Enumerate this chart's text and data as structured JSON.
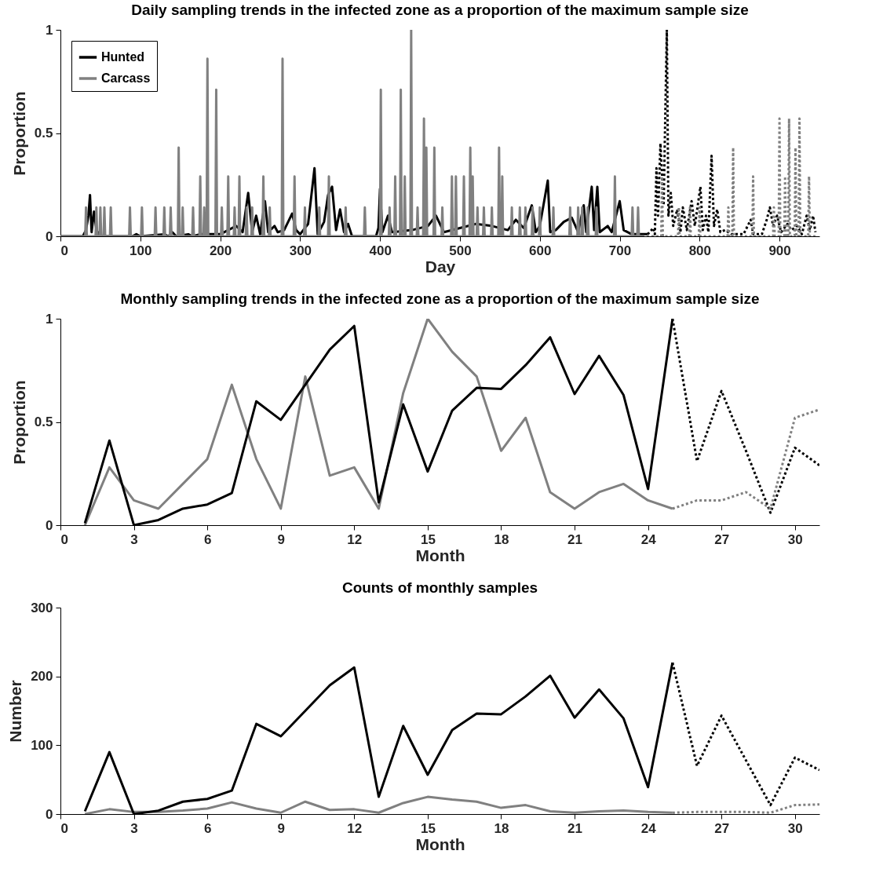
{
  "chart_data": [
    {
      "type": "line",
      "title": "Daily sampling trends in the infected zone as a proportion of the maximum sample size",
      "xlabel": "Day",
      "ylabel": "Proportion",
      "xlim": [
        0,
        950
      ],
      "xticks": [
        0,
        100,
        200,
        300,
        400,
        500,
        600,
        700,
        800,
        900
      ],
      "ylim": [
        0,
        1
      ],
      "yticks": [
        0,
        0.5,
        1
      ],
      "legend": "top left",
      "series": [
        {
          "name": "Hunted",
          "color": "#000000",
          "line_style": "solid",
          "x": [
            0,
            28,
            32,
            35,
            37,
            39,
            42,
            45,
            50,
            90,
            95,
            100,
            130,
            135,
            140,
            145,
            160,
            165,
            175,
            200,
            210,
            220,
            228,
            235,
            240,
            245,
            250,
            256,
            260,
            268,
            272,
            280,
            290,
            295,
            300,
            310,
            318,
            322,
            330,
            335,
            340,
            345,
            350,
            355,
            360,
            365,
            395,
            398,
            400,
            403,
            410,
            415,
            440,
            460,
            470,
            480,
            500,
            520,
            540,
            560,
            570,
            580,
            590,
            595,
            600,
            610,
            613,
            620,
            630,
            640,
            648,
            655,
            658,
            665,
            668,
            672,
            675,
            685,
            690,
            700,
            705,
            715,
            725,
            735
          ],
          "values": [
            0,
            0,
            0.03,
            0.1,
            0.2,
            0.02,
            0.12,
            0.03,
            0,
            0,
            0.01,
            0,
            0.01,
            0,
            0.02,
            0,
            0.01,
            0,
            0.01,
            0.01,
            0.03,
            0.05,
            0.02,
            0.21,
            0.02,
            0.1,
            0.01,
            0.17,
            0.02,
            0.05,
            0.02,
            0.03,
            0.11,
            0.03,
            0.01,
            0.06,
            0.33,
            0.01,
            0.07,
            0.2,
            0.24,
            0.03,
            0.13,
            0.02,
            0.06,
            0,
            0,
            0.04,
            0.23,
            0.02,
            0.1,
            0.02,
            0.03,
            0.05,
            0.1,
            0.02,
            0.04,
            0.06,
            0.05,
            0.03,
            0.08,
            0.04,
            0.15,
            0.02,
            0.05,
            0.27,
            0.02,
            0.03,
            0.07,
            0.09,
            0.02,
            0.15,
            0.02,
            0.24,
            0.03,
            0.24,
            0.02,
            0.05,
            0.02,
            0.17,
            0.03,
            0.01,
            0.01,
            0.01
          ]
        },
        {
          "name": "Carcass",
          "color": "#808080",
          "line_style": "solid",
          "x": [
            0,
            31,
            32,
            33,
            44,
            45,
            46,
            49,
            50,
            51,
            54,
            55,
            56,
            62,
            63,
            64,
            86,
            87,
            88,
            101,
            102,
            103,
            118,
            119,
            120,
            129,
            130,
            131,
            137,
            138,
            139,
            147,
            148,
            149,
            152,
            153,
            154,
            165,
            166,
            167,
            174,
            175,
            176,
            179,
            180,
            181,
            183,
            184,
            185,
            194,
            195,
            196,
            201,
            202,
            203,
            209,
            210,
            211,
            217,
            218,
            219,
            223,
            224,
            225,
            232,
            233,
            234,
            239,
            240,
            241,
            253,
            254,
            255,
            261,
            262,
            263,
            277,
            278,
            279,
            292,
            293,
            294,
            305,
            306,
            307,
            323,
            324,
            325,
            335,
            336,
            337,
            356,
            357,
            358,
            380,
            381,
            382,
            400,
            401,
            402,
            411,
            412,
            413,
            418,
            419,
            420,
            425,
            426,
            427,
            430,
            431,
            432,
            438,
            439,
            440,
            446,
            447,
            448,
            454,
            455,
            456,
            457,
            458,
            459,
            467,
            468,
            469,
            477,
            478,
            479,
            489,
            490,
            491,
            494,
            495,
            496,
            504,
            505,
            506,
            512,
            513,
            514,
            515,
            516,
            517,
            521,
            522,
            523,
            529,
            530,
            531,
            539,
            540,
            541,
            548,
            549,
            550,
            552,
            553,
            554,
            564,
            565,
            566,
            574,
            575,
            576,
            581,
            582,
            583,
            590,
            591,
            592,
            599,
            600,
            601,
            616,
            617,
            618,
            637,
            638,
            639,
            647,
            648,
            649,
            652,
            653,
            654,
            659,
            660,
            661,
            670,
            671,
            672,
            693,
            694,
            695,
            715,
            716,
            717,
            722,
            723,
            724,
            728
          ],
          "values": [
            0,
            0,
            0.14,
            0,
            0,
            0.14,
            0,
            0,
            0.14,
            0,
            0,
            0.14,
            0,
            0,
            0.14,
            0,
            0,
            0.14,
            0,
            0,
            0.14,
            0,
            0,
            0.14,
            0,
            0,
            0.14,
            0,
            0,
            0.14,
            0,
            0,
            0.43,
            0,
            0,
            0.14,
            0,
            0,
            0.14,
            0,
            0,
            0.29,
            0,
            0,
            0.14,
            0,
            0,
            0.86,
            0,
            0,
            0.71,
            0,
            0,
            0.14,
            0,
            0,
            0.29,
            0,
            0,
            0.14,
            0,
            0,
            0.29,
            0,
            0,
            0.14,
            0,
            0,
            0.14,
            0,
            0,
            0.29,
            0,
            0,
            0.14,
            0,
            0,
            0.86,
            0,
            0,
            0.29,
            0,
            0,
            0.14,
            0,
            0,
            0.14,
            0,
            0,
            0.29,
            0,
            0,
            0.14,
            0,
            0,
            0.14,
            0,
            0,
            0.71,
            0,
            0,
            0.14,
            0,
            0,
            0.29,
            0,
            0,
            0.71,
            0,
            0,
            0.29,
            0,
            0,
            1,
            0,
            0,
            0.14,
            0,
            0,
            0.57,
            0,
            0,
            0.43,
            0,
            0,
            0.43,
            0,
            0,
            0.14,
            0,
            0,
            0.29,
            0,
            0,
            0.29,
            0,
            0,
            0.29,
            0,
            0,
            0.43,
            0,
            0,
            0.29,
            0,
            0,
            0.14,
            0,
            0,
            0.14,
            0,
            0,
            0.14,
            0,
            0,
            0.43,
            0,
            0,
            0.29,
            0,
            0,
            0.14,
            0,
            0,
            0.14,
            0,
            0,
            0.14,
            0,
            0,
            0.14,
            0,
            0,
            0.14,
            0,
            0,
            0.14,
            0,
            0,
            0.14,
            0,
            0,
            0.14,
            0,
            0,
            0.14,
            0,
            0,
            0.14,
            0,
            0,
            0.14,
            0,
            0,
            0.29,
            0,
            0,
            0.14,
            0,
            0,
            0.14,
            0,
            0
          ]
        },
        {
          "color": "#000000",
          "line_style": "dotted",
          "x": [
            735,
            742,
            744,
            746,
            748,
            751,
            755,
            759,
            761,
            764,
            767,
            772,
            776,
            779,
            784,
            790,
            794,
            797,
            801,
            804,
            808,
            811,
            815,
            818,
            822,
            826,
            832,
            840,
            855,
            864,
            867,
            878,
            884,
            888,
            892,
            897,
            902,
            910,
            915,
            922,
            928,
            934,
            938,
            942,
            945
          ],
          "values": [
            0.01,
            0.04,
            0.01,
            0.33,
            0.1,
            0.45,
            0.15,
            1,
            0.1,
            0.21,
            0.05,
            0.13,
            0.02,
            0.14,
            0.03,
            0.17,
            0.05,
            0.13,
            0.24,
            0.03,
            0.1,
            0.02,
            0.39,
            0.05,
            0.13,
            0.02,
            0.03,
            0.01,
            0.01,
            0.08,
            0.01,
            0.01,
            0.08,
            0.14,
            0.05,
            0.1,
            0.02,
            0.06,
            0.03,
            0.05,
            0.01,
            0.1,
            0.03,
            0.1,
            0.02
          ]
        },
        {
          "color": "#808080",
          "line_style": "dotted",
          "x": [
            728,
            752,
            753,
            754,
            773,
            774,
            775,
            787,
            788,
            789,
            799,
            800,
            801,
            835,
            836,
            837,
            841,
            842,
            843,
            866,
            867,
            868,
            892,
            893,
            894,
            899,
            900,
            901,
            906,
            907,
            908,
            911,
            912,
            913,
            919,
            920,
            921,
            924,
            925,
            926,
            936,
            937,
            938,
            945
          ],
          "values": [
            0,
            0,
            0.29,
            0,
            0,
            0.14,
            0,
            0,
            0.14,
            0,
            0,
            0.14,
            0,
            0,
            0.14,
            0,
            0,
            0.43,
            0,
            0,
            0.29,
            0,
            0,
            0.14,
            0,
            0,
            0.57,
            0,
            0,
            0.29,
            0,
            0,
            0.57,
            0,
            0,
            0.43,
            0,
            0,
            0.57,
            0,
            0,
            0.29,
            0,
            0
          ]
        }
      ]
    },
    {
      "type": "line",
      "title": "Monthly sampling trends in the infected zone as a proportion of the maximum sample size",
      "xlabel": "Month",
      "ylabel": "Proportion",
      "xlim": [
        0,
        31
      ],
      "xticks": [
        0,
        3,
        6,
        9,
        12,
        15,
        18,
        21,
        24,
        27,
        30
      ],
      "ylim": [
        0,
        1
      ],
      "yticks": [
        0,
        0.5,
        1
      ],
      "series": [
        {
          "color": "#808080",
          "line_style": "solid",
          "x": [
            1,
            2,
            3,
            4,
            5,
            6,
            7,
            8,
            9,
            10,
            11,
            12,
            13,
            14,
            15,
            16,
            17,
            18,
            19,
            20,
            21,
            22,
            23,
            24,
            25
          ],
          "values": [
            0,
            0.28,
            0.12,
            0.08,
            0.2,
            0.32,
            0.68,
            0.32,
            0.08,
            0.72,
            0.24,
            0.28,
            0.08,
            0.64,
            1,
            0.84,
            0.72,
            0.36,
            0.52,
            0.16,
            0.08,
            0.16,
            0.2,
            0.12,
            0.08
          ]
        },
        {
          "color": "#000000",
          "line_style": "solid",
          "x": [
            1,
            2,
            3,
            4,
            5,
            6,
            7,
            8,
            9,
            10,
            11,
            12,
            13,
            14,
            15,
            16,
            17,
            18,
            19,
            20,
            21,
            22,
            23,
            24,
            25
          ],
          "values": [
            0.01,
            0.41,
            0,
            0.025,
            0.08,
            0.1,
            0.155,
            0.6,
            0.51,
            0.68,
            0.85,
            0.965,
            0.11,
            0.585,
            0.26,
            0.555,
            0.665,
            0.66,
            0.775,
            0.91,
            0.635,
            0.82,
            0.63,
            0.175,
            1
          ]
        },
        {
          "color": "#000000",
          "line_style": "dotted",
          "x": [
            25,
            26,
            27,
            28,
            29,
            30,
            31
          ],
          "values": [
            1,
            0.31,
            0.65,
            0.36,
            0.06,
            0.375,
            0.29
          ]
        },
        {
          "color": "#808080",
          "line_style": "dotted",
          "x": [
            25,
            26,
            27,
            28,
            29,
            30,
            31
          ],
          "values": [
            0.08,
            0.12,
            0.12,
            0.16,
            0.08,
            0.52,
            0.56
          ]
        }
      ]
    },
    {
      "type": "line",
      "title": "Counts of monthly samples",
      "xlabel": "Month",
      "ylabel": "Number",
      "xlim": [
        0,
        31
      ],
      "xticks": [
        0,
        3,
        6,
        9,
        12,
        15,
        18,
        21,
        24,
        27,
        30
      ],
      "ylim": [
        0,
        300
      ],
      "yticks": [
        0,
        100,
        200,
        300
      ],
      "series": [
        {
          "color": "#808080",
          "line_style": "solid",
          "x": [
            1,
            2,
            3,
            4,
            5,
            6,
            7,
            8,
            9,
            10,
            11,
            12,
            13,
            14,
            15,
            16,
            17,
            18,
            19,
            20,
            21,
            22,
            23,
            24,
            25
          ],
          "values": [
            0,
            7,
            3,
            3,
            5,
            8,
            17,
            8,
            2,
            18,
            6,
            7,
            2,
            16,
            25,
            21,
            18,
            9,
            13,
            4,
            2,
            4,
            5,
            3,
            2
          ]
        },
        {
          "color": "#000000",
          "line_style": "solid",
          "x": [
            1,
            2,
            3,
            4,
            5,
            6,
            7,
            8,
            9,
            10,
            11,
            12,
            13,
            14,
            15,
            16,
            17,
            18,
            19,
            20,
            21,
            22,
            23,
            24,
            25
          ],
          "values": [
            4,
            90,
            0,
            5,
            18,
            22,
            34,
            131,
            113,
            150,
            187,
            213,
            25,
            128,
            57,
            122,
            146,
            145,
            171,
            201,
            140,
            181,
            139,
            39,
            220
          ]
        },
        {
          "color": "#000000",
          "line_style": "dotted",
          "x": [
            25,
            26,
            27,
            28,
            29,
            30,
            31
          ],
          "values": [
            220,
            70,
            143,
            78,
            13,
            82,
            64
          ]
        },
        {
          "color": "#808080",
          "line_style": "dotted",
          "x": [
            25,
            26,
            27,
            28,
            29,
            30,
            31
          ],
          "values": [
            2,
            3,
            3,
            3,
            2,
            13,
            14
          ]
        }
      ]
    }
  ]
}
